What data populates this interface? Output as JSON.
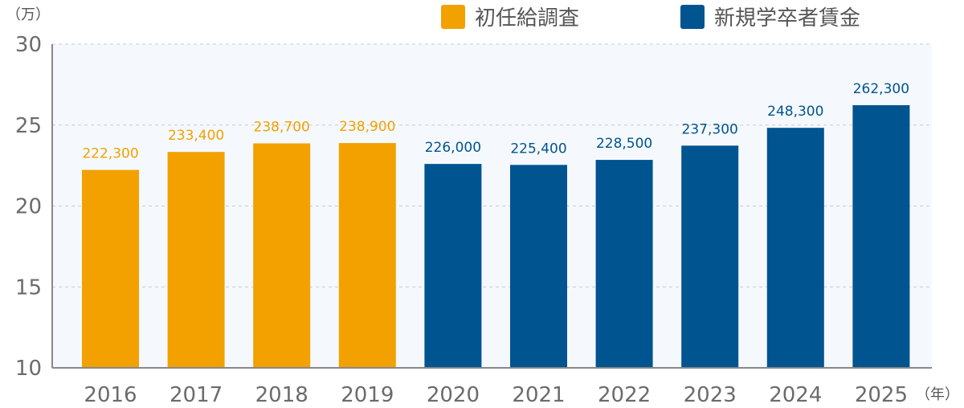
{
  "chart_data": {
    "type": "bar",
    "y_unit_label": "（万）",
    "x_unit_label": "（年）",
    "ylim": [
      10,
      30
    ],
    "y_ticks": [
      "10",
      "15",
      "20",
      "25",
      "30"
    ],
    "grid": "horizontal-dashed",
    "legend_position": "top-right",
    "categories": [
      "2016",
      "2017",
      "2018",
      "2019",
      "2020",
      "2021",
      "2022",
      "2023",
      "2024",
      "2025"
    ],
    "series": [
      {
        "name": "初任給調査",
        "color": "#f2a100",
        "values": [
          22.23,
          23.34,
          23.87,
          23.89,
          null,
          null,
          null,
          null,
          null,
          null
        ],
        "labels": [
          "222,300",
          "233,400",
          "238,700",
          "238,900",
          "",
          "",
          "",
          "",
          "",
          ""
        ]
      },
      {
        "name": "新規学卒者賃金",
        "color": "#005490",
        "values": [
          null,
          null,
          null,
          null,
          22.6,
          22.54,
          22.85,
          23.73,
          24.83,
          26.23
        ],
        "labels": [
          "",
          "",
          "",
          "",
          "226,000",
          "225,400",
          "228,500",
          "237,300",
          "248,300",
          "262,300"
        ]
      }
    ]
  }
}
